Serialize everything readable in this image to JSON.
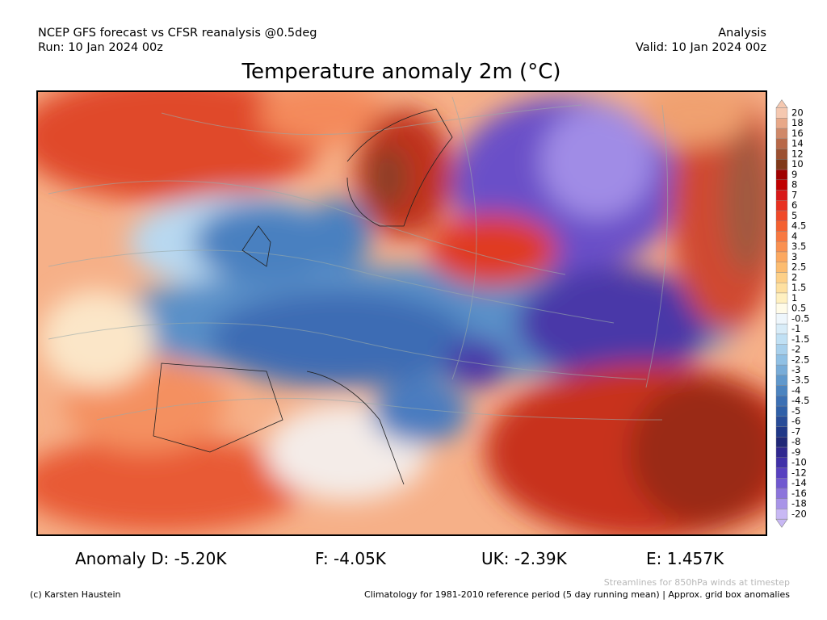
{
  "header": {
    "left_line1": "NCEP GFS forecast vs CFSR reanalysis @0.5deg",
    "left_line2": "Run: 10 Jan 2024 00z",
    "right_line1": "Analysis",
    "right_line2": "Valid: 10 Jan 2024 00z",
    "title": "Temperature anomaly 2m (°C)"
  },
  "anomalies": [
    "Anomaly D: -5.20K",
    "F: -4.05K",
    "UK: -2.39K",
    "E: 1.457K"
  ],
  "footer": {
    "streamlines_note": "Streamlines for 850hPa winds at timestep",
    "copyright": "(c) Karsten Haustein",
    "climatology": "Climatology for 1981-2010 reference period (5 day running mean) | Approx. grid box anomalies"
  },
  "colorbar": {
    "levels": [
      20,
      18,
      16,
      14,
      12,
      10,
      9,
      8,
      7,
      6,
      5,
      4.5,
      4,
      3.5,
      3,
      2.5,
      2,
      1.5,
      1,
      0.5,
      -0.5,
      -1,
      -1.5,
      -2,
      -2.5,
      -3,
      -3.5,
      -4,
      -4.5,
      -5,
      -6,
      -7,
      -8,
      -9,
      -10,
      -12,
      -14,
      -16,
      -18,
      -20
    ],
    "colors": [
      "#f5c8b0",
      "#e8a888",
      "#d08868",
      "#b86848",
      "#9c5030",
      "#803818",
      "#a00000",
      "#c00000",
      "#d81818",
      "#e83020",
      "#f04828",
      "#f46030",
      "#f87840",
      "#fa9050",
      "#fca860",
      "#fcbc70",
      "#fdd088",
      "#fee0a0",
      "#fff0c0",
      "#fffbe8",
      "#eef6fc",
      "#d8ecf8",
      "#c0e0f4",
      "#a8d0ec",
      "#90c0e4",
      "#78acd8",
      "#6098cc",
      "#4c84c0",
      "#3c70b4",
      "#3060a8",
      "#284c98",
      "#203888",
      "#202878",
      "#302890",
      "#4030a8",
      "#5840c0",
      "#7058d0",
      "#8c74dc",
      "#a894e8",
      "#c8b8f4"
    ]
  }
}
